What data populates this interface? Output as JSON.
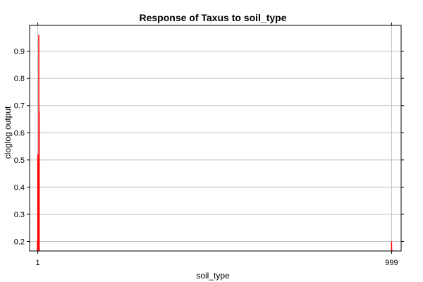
{
  "chart_data": {
    "type": "bar",
    "title": "Response of Taxus to soil_type",
    "xlabel": "soil_type",
    "ylabel": "cloglog output",
    "xlim": [
      -22,
      1026
    ],
    "ylim": [
      0.165,
      0.995
    ],
    "x_ticks": [
      "1",
      "999"
    ],
    "y_ticks": [
      0.2,
      0.3,
      0.4,
      0.5,
      0.6,
      0.7,
      0.8,
      0.9
    ],
    "grid": "horizontal",
    "colors": {
      "bars": "#ff0000",
      "grid": "#c0c0c0",
      "axis": "#000000"
    },
    "points": [
      {
        "x": 0,
        "y": 0.2
      },
      {
        "x": 1,
        "y": 0.52
      },
      {
        "x": 2,
        "y": 0.31
      },
      {
        "x": 3,
        "y": 0.5
      },
      {
        "x": 4,
        "y": 0.96
      },
      {
        "x": 5,
        "y": 0.68
      },
      {
        "x": 999,
        "y": 0.2
      },
      {
        "x": 1000,
        "y": 0.17
      }
    ]
  }
}
